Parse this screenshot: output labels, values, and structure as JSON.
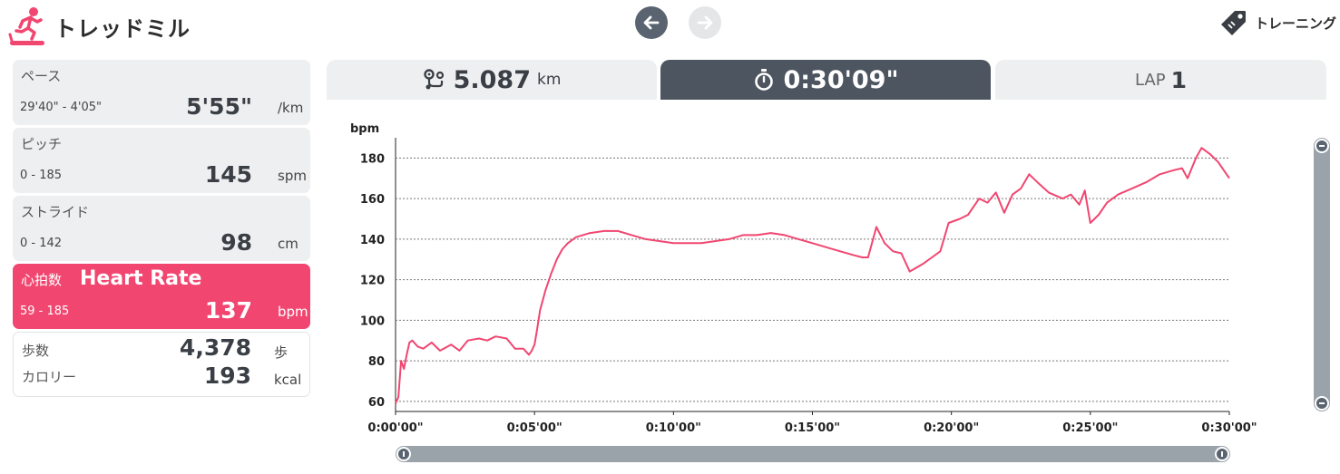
{
  "header": {
    "title": "トレッドミル",
    "training_label": "トレーニング",
    "icons": {
      "brand": "treadmill-runner-icon",
      "prev": "arrow-left-icon",
      "next": "arrow-right-icon",
      "training": "tag-icon"
    },
    "accent": "#f14670"
  },
  "stats": {
    "pace": {
      "label": "ペース",
      "range": "29'40\" - 4'05\"",
      "value": "5'55\"",
      "unit": "/km"
    },
    "pitch": {
      "label": "ピッチ",
      "range": "0 - 185",
      "value": "145",
      "unit": "spm"
    },
    "stride": {
      "label": "ストライド",
      "range": "0 - 142",
      "value": "98",
      "unit": "cm"
    },
    "heart_rate": {
      "label": "心拍数",
      "sublabel": "Heart Rate",
      "range": "59 - 185",
      "value": "137",
      "unit": "bpm"
    },
    "steps": {
      "label": "歩数",
      "value": "4,378",
      "unit": "歩"
    },
    "calories": {
      "label": "カロリー",
      "value": "193",
      "unit": "kcal"
    }
  },
  "tabs": {
    "distance": {
      "value": "5.087",
      "unit": "km",
      "icon": "route-icon"
    },
    "time": {
      "value": "0:30'09\"",
      "icon": "stopwatch-icon"
    },
    "lap": {
      "label": "LAP",
      "value": "1"
    }
  },
  "chart_data": {
    "type": "line",
    "ylabel": "bpm",
    "yticks": [
      60,
      80,
      100,
      120,
      140,
      160,
      180
    ],
    "ylim": [
      55,
      190
    ],
    "xlim": [
      0,
      30
    ],
    "xtick_labels": [
      "0:00'00\"",
      "0:05'00\"",
      "0:10'00\"",
      "0:15'00\"",
      "0:20'00\"",
      "0:25'00\"",
      "0:30'00\""
    ],
    "grid": true,
    "color": "#f14670",
    "series": [
      {
        "x": [
          0,
          0.1,
          0.2,
          0.3,
          0.4,
          0.5,
          0.6,
          0.8,
          1.0,
          1.3,
          1.6,
          2.0,
          2.3,
          2.6,
          3.0,
          3.3,
          3.6,
          4.0,
          4.3,
          4.6,
          4.8,
          4.9,
          5.0,
          5.1,
          5.2,
          5.4,
          5.6,
          5.8,
          6.0,
          6.2,
          6.5,
          7.0,
          7.5,
          8.0,
          8.5,
          9.0,
          10.0,
          11.0,
          12.0,
          12.5,
          13.0,
          13.5,
          14.0,
          14.5,
          15.0,
          15.5,
          16.0,
          16.5,
          16.8,
          17.0,
          17.3,
          17.6,
          17.9,
          18.2,
          18.5,
          19.0,
          19.3,
          19.6,
          19.9,
          20.3,
          20.6,
          21.0,
          21.3,
          21.6,
          21.9,
          22.2,
          22.5,
          22.8,
          23.1,
          23.5,
          24.0,
          24.3,
          24.6,
          24.8,
          25.0,
          25.3,
          25.6,
          26.0,
          26.5,
          27.0,
          27.5,
          28.0,
          28.3,
          28.5,
          28.8,
          29.0,
          29.3,
          29.6,
          30.0
        ],
        "y": [
          59,
          62,
          80,
          76,
          83,
          89,
          90,
          87,
          86,
          89,
          85,
          88,
          85,
          90,
          91,
          90,
          92,
          91,
          86,
          86,
          83,
          85,
          88,
          96,
          105,
          115,
          123,
          130,
          135,
          138,
          141,
          143,
          144,
          144,
          142,
          140,
          138,
          138,
          140,
          142,
          142,
          143,
          142,
          140,
          138,
          136,
          134,
          132,
          131,
          131,
          146,
          138,
          134,
          133,
          124,
          128,
          131,
          134,
          148,
          150,
          152,
          160,
          158,
          163,
          153,
          162,
          165,
          172,
          168,
          163,
          160,
          162,
          157,
          164,
          148,
          152,
          158,
          162,
          165,
          168,
          172,
          174,
          175,
          170,
          180,
          185,
          182,
          178,
          170
        ]
      }
    ]
  }
}
